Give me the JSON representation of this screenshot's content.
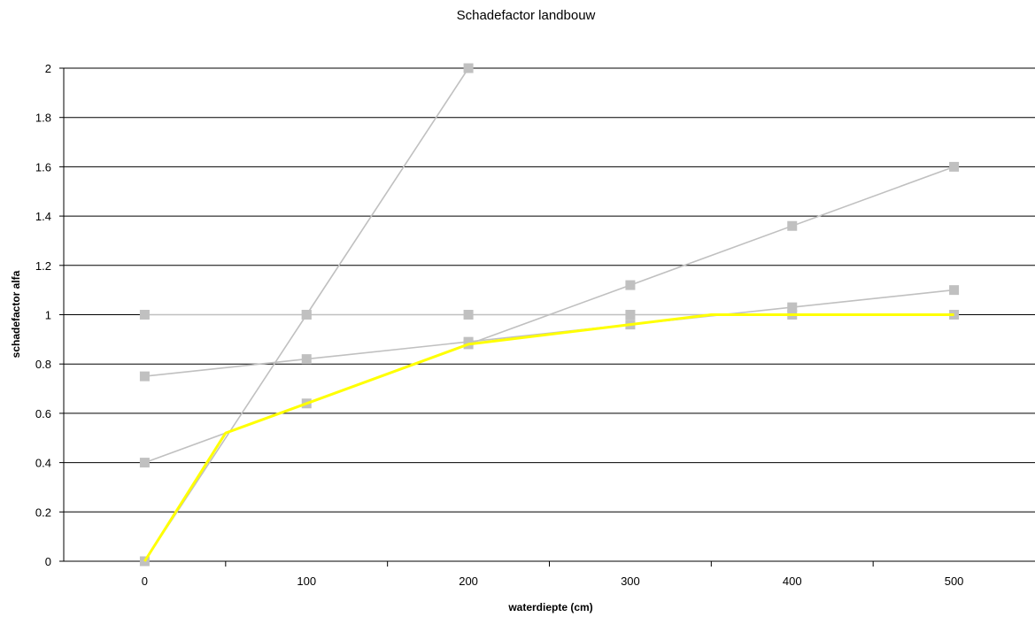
{
  "chart_data": {
    "type": "line",
    "title": "Schadefactor landbouw",
    "xlabel": "waterdiepte (cm)",
    "ylabel": "schadefactor alfa",
    "xlim": [
      -50,
      550
    ],
    "ylim": [
      0,
      2
    ],
    "x_ticks": [
      0,
      100,
      200,
      300,
      400,
      500
    ],
    "y_ticks": [
      0,
      0.2,
      0.4,
      0.6,
      0.8,
      1,
      1.2,
      1.4,
      1.6,
      1.8,
      2
    ],
    "grid": "horizontal",
    "legend": "none",
    "series": [
      {
        "color": "#c0c0c0",
        "marker": "square",
        "points": [
          [
            0,
            1
          ],
          [
            100,
            1
          ],
          [
            200,
            1
          ],
          [
            300,
            1
          ],
          [
            400,
            1
          ],
          [
            500,
            1
          ]
        ]
      },
      {
        "color": "#c0c0c0",
        "marker": "square",
        "points": [
          [
            0,
            0.75
          ],
          [
            100,
            0.82
          ],
          [
            200,
            0.89
          ],
          [
            300,
            0.96
          ],
          [
            400,
            1.03
          ],
          [
            500,
            1.1
          ]
        ]
      },
      {
        "color": "#c0c0c0",
        "marker": "square",
        "points": [
          [
            0,
            0.4
          ],
          [
            100,
            0.64
          ],
          [
            200,
            0.88
          ],
          [
            300,
            1.12
          ],
          [
            400,
            1.36
          ],
          [
            500,
            1.6
          ]
        ]
      },
      {
        "color": "#c0c0c0",
        "marker": "square",
        "points": [
          [
            0,
            0
          ],
          [
            100,
            1
          ],
          [
            200,
            2
          ]
        ]
      },
      {
        "color": "#ffff00",
        "marker": "none",
        "points": [
          [
            0,
            0
          ],
          [
            50,
            0.52
          ],
          [
            100,
            0.64
          ],
          [
            200,
            0.88
          ],
          [
            300,
            0.96
          ],
          [
            350,
            1
          ],
          [
            400,
            1
          ],
          [
            500,
            1
          ]
        ]
      }
    ]
  }
}
